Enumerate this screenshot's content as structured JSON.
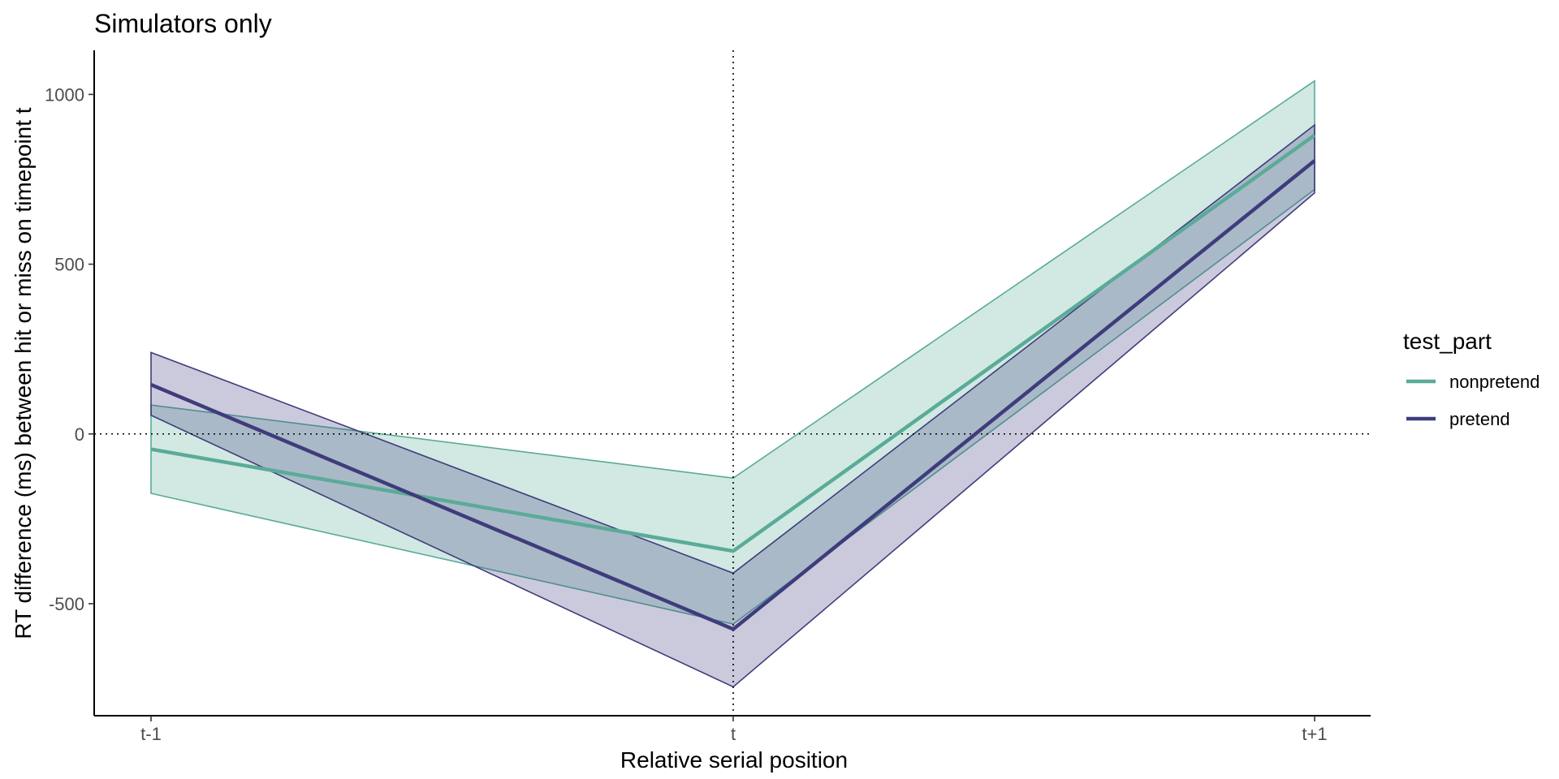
{
  "chart_data": {
    "type": "line",
    "title": "Simulators only",
    "xlabel": "Relative serial position",
    "ylabel": "RT difference (ms) between hit or miss on timepoint t",
    "categories": [
      "t-1",
      "t",
      "t+1"
    ],
    "yticks": [
      -500,
      0,
      500,
      1000
    ],
    "ylim": [
      -830,
      1130
    ],
    "reference_lines": {
      "x": "t",
      "y": 0
    },
    "grid": false,
    "legend": {
      "title": "test_part",
      "placement": "right"
    },
    "series": [
      {
        "name": "nonpretend",
        "color": "#5aab98",
        "values": [
          -45,
          -345,
          880
        ],
        "lower": [
          -175,
          -560,
          720
        ],
        "upper": [
          85,
          -130,
          1040
        ]
      },
      {
        "name": "pretend",
        "color": "#3f3c7c",
        "values": [
          145,
          -575,
          805
        ],
        "lower": [
          55,
          -745,
          710
        ],
        "upper": [
          240,
          -410,
          910
        ]
      }
    ]
  }
}
